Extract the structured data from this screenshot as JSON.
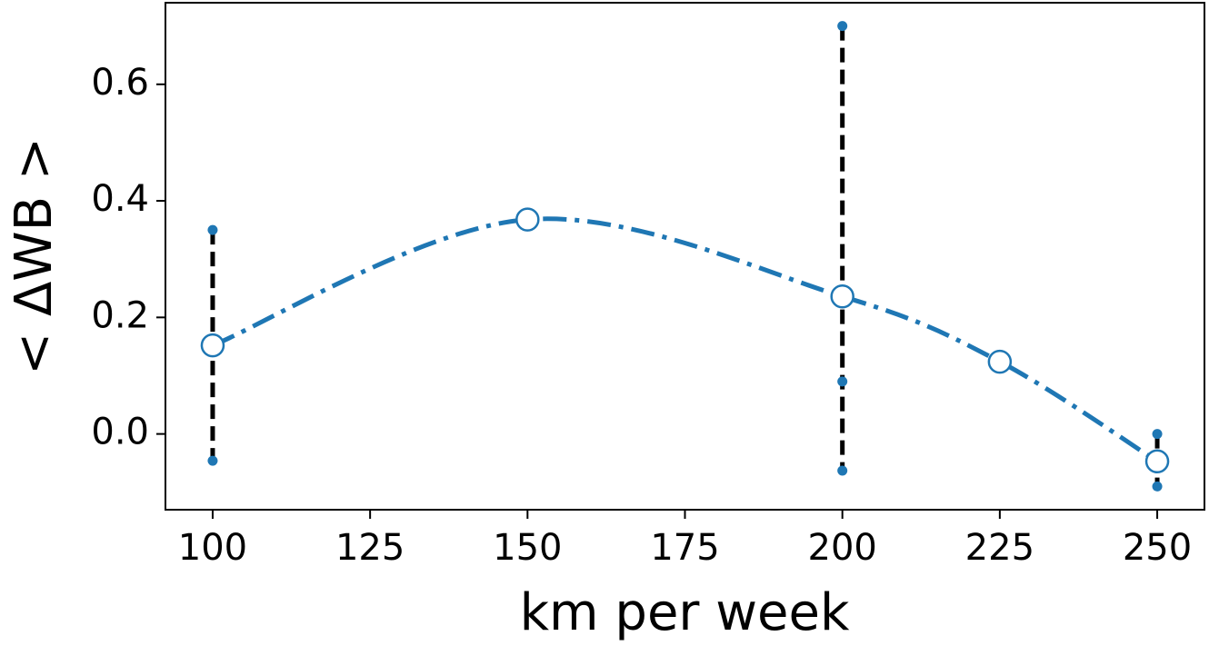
{
  "chart_data": {
    "type": "line",
    "xlabel": "km per week",
    "ylabel": "< ΔWB >",
    "x": [
      100,
      150,
      200,
      225,
      250
    ],
    "series": [
      {
        "color": "#1f77b4",
        "values": [
          0.152,
          0.368,
          0.236,
          0.124,
          -0.047
        ]
      }
    ],
    "samples": {
      "color": "#1f77b4",
      "x": [
        100,
        100,
        200,
        200,
        200,
        250,
        250
      ],
      "y": [
        0.35,
        -0.046,
        0.7,
        0.09,
        -0.063,
        0.0,
        -0.09
      ]
    },
    "xlim": [
      92.5,
      257.5
    ],
    "xticks": [
      100,
      125,
      150,
      175,
      200,
      225,
      250
    ],
    "ylim": [
      -0.13,
      0.74
    ],
    "yticks": [
      {
        "value": 0,
        "label": "0.0"
      },
      0.2,
      0.4,
      0.6
    ]
  }
}
